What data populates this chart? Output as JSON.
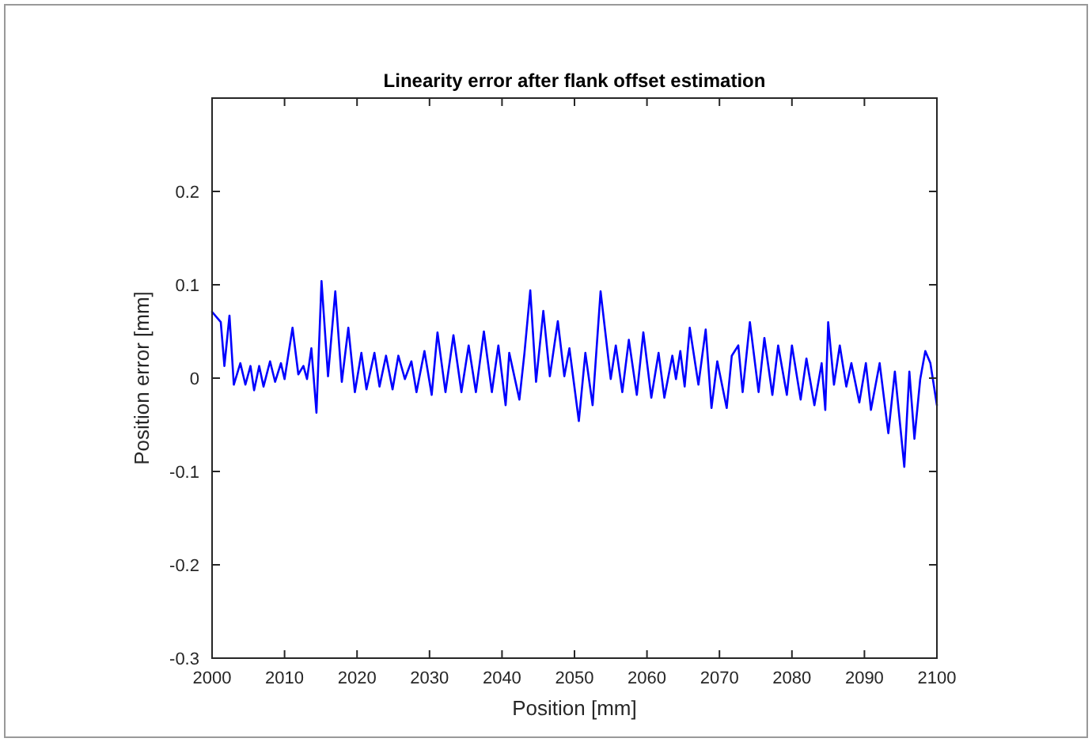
{
  "chart_data": {
    "type": "line",
    "title": "Linearity error after flank offset estimation",
    "xlabel": "Position [mm]",
    "ylabel": "Position error [mm]",
    "xlim": [
      2000,
      2100
    ],
    "xticks": [
      2000,
      2010,
      2020,
      2030,
      2040,
      2050,
      2060,
      2070,
      2080,
      2090,
      2100
    ],
    "ylim": [
      -0.3,
      0.3
    ],
    "yticks": [
      -0.3,
      -0.2,
      -0.1,
      0,
      0.1,
      0.2,
      {
        "value": 0.3,
        "label": null
      }
    ],
    "grid": false,
    "marker": "none",
    "line_style": "solid",
    "series": [
      {
        "color": "#0000ff",
        "x": [
          2000,
          2001.2,
          2001.7,
          2002.4,
          2003,
          2003.9,
          2004.6,
          2005.3,
          2005.8,
          2006.5,
          2007.1,
          2008,
          2008.7,
          2009.5,
          2010,
          2011.1,
          2011.9,
          2012.6,
          2013.1,
          2013.7,
          2014.4,
          2015.1,
          2016,
          2017,
          2017.9,
          2018.8,
          2019.7,
          2020.6,
          2021.3,
          2022.4,
          2023.1,
          2024,
          2024.9,
          2025.7,
          2026.6,
          2027.5,
          2028.2,
          2029.3,
          2030.3,
          2031.1,
          2032.2,
          2033.3,
          2034.4,
          2035.4,
          2036.4,
          2037.5,
          2038.6,
          2039.5,
          2040.5,
          2041,
          2042.4,
          2043.1,
          2043.9,
          2044.7,
          2045.7,
          2046.6,
          2047.7,
          2048.6,
          2049.3,
          2050.6,
          2051.5,
          2052.5,
          2053.6,
          2055,
          2055.7,
          2056.6,
          2057.5,
          2058.6,
          2059.5,
          2060.6,
          2061.6,
          2062.4,
          2063.5,
          2064,
          2064.6,
          2065.2,
          2065.9,
          2067.1,
          2068.1,
          2068.9,
          2069.7,
          2071,
          2071.7,
          2072.6,
          2073.2,
          2074.2,
          2075.4,
          2076.2,
          2077.3,
          2078.1,
          2079.3,
          2080,
          2081.2,
          2082,
          2083.1,
          2084.1,
          2084.6,
          2085,
          2085.8,
          2086.6,
          2087.5,
          2088.2,
          2089.3,
          2090.2,
          2090.9,
          2092.1,
          2093.3,
          2094.2,
          2095.5,
          2096.2,
          2096.9,
          2097.7,
          2098.4,
          2099.1,
          2100
        ],
        "values": [
          0.071,
          0.06,
          0.013,
          0.067,
          -0.007,
          0.016,
          -0.007,
          0.013,
          -0.013,
          0.013,
          -0.009,
          0.018,
          -0.004,
          0.016,
          -0.001,
          0.054,
          0.004,
          0.013,
          -0.001,
          0.032,
          -0.037,
          0.104,
          0.002,
          0.093,
          -0.004,
          0.054,
          -0.015,
          0.027,
          -0.012,
          0.027,
          -0.009,
          0.024,
          -0.012,
          0.024,
          -0.001,
          0.018,
          -0.015,
          0.029,
          -0.018,
          0.049,
          -0.015,
          0.046,
          -0.015,
          0.035,
          -0.015,
          0.05,
          -0.015,
          0.035,
          -0.029,
          0.027,
          -0.023,
          0.027,
          0.094,
          -0.004,
          0.072,
          0.002,
          0.061,
          0.002,
          0.032,
          -0.046,
          0.027,
          -0.029,
          0.093,
          -0.001,
          0.035,
          -0.015,
          0.041,
          -0.018,
          0.049,
          -0.021,
          0.027,
          -0.021,
          0.024,
          -0.001,
          0.029,
          -0.009,
          0.054,
          -0.007,
          0.052,
          -0.032,
          0.018,
          -0.032,
          0.024,
          0.035,
          -0.015,
          0.06,
          -0.015,
          0.043,
          -0.018,
          0.035,
          -0.018,
          0.035,
          -0.023,
          0.021,
          -0.029,
          0.016,
          -0.034,
          0.06,
          -0.007,
          0.035,
          -0.009,
          0.016,
          -0.026,
          0.016,
          -0.034,
          0.016,
          -0.059,
          0.007,
          -0.095,
          0.007,
          -0.065,
          -0.001,
          0.029,
          0.016,
          -0.029
        ]
      }
    ]
  }
}
